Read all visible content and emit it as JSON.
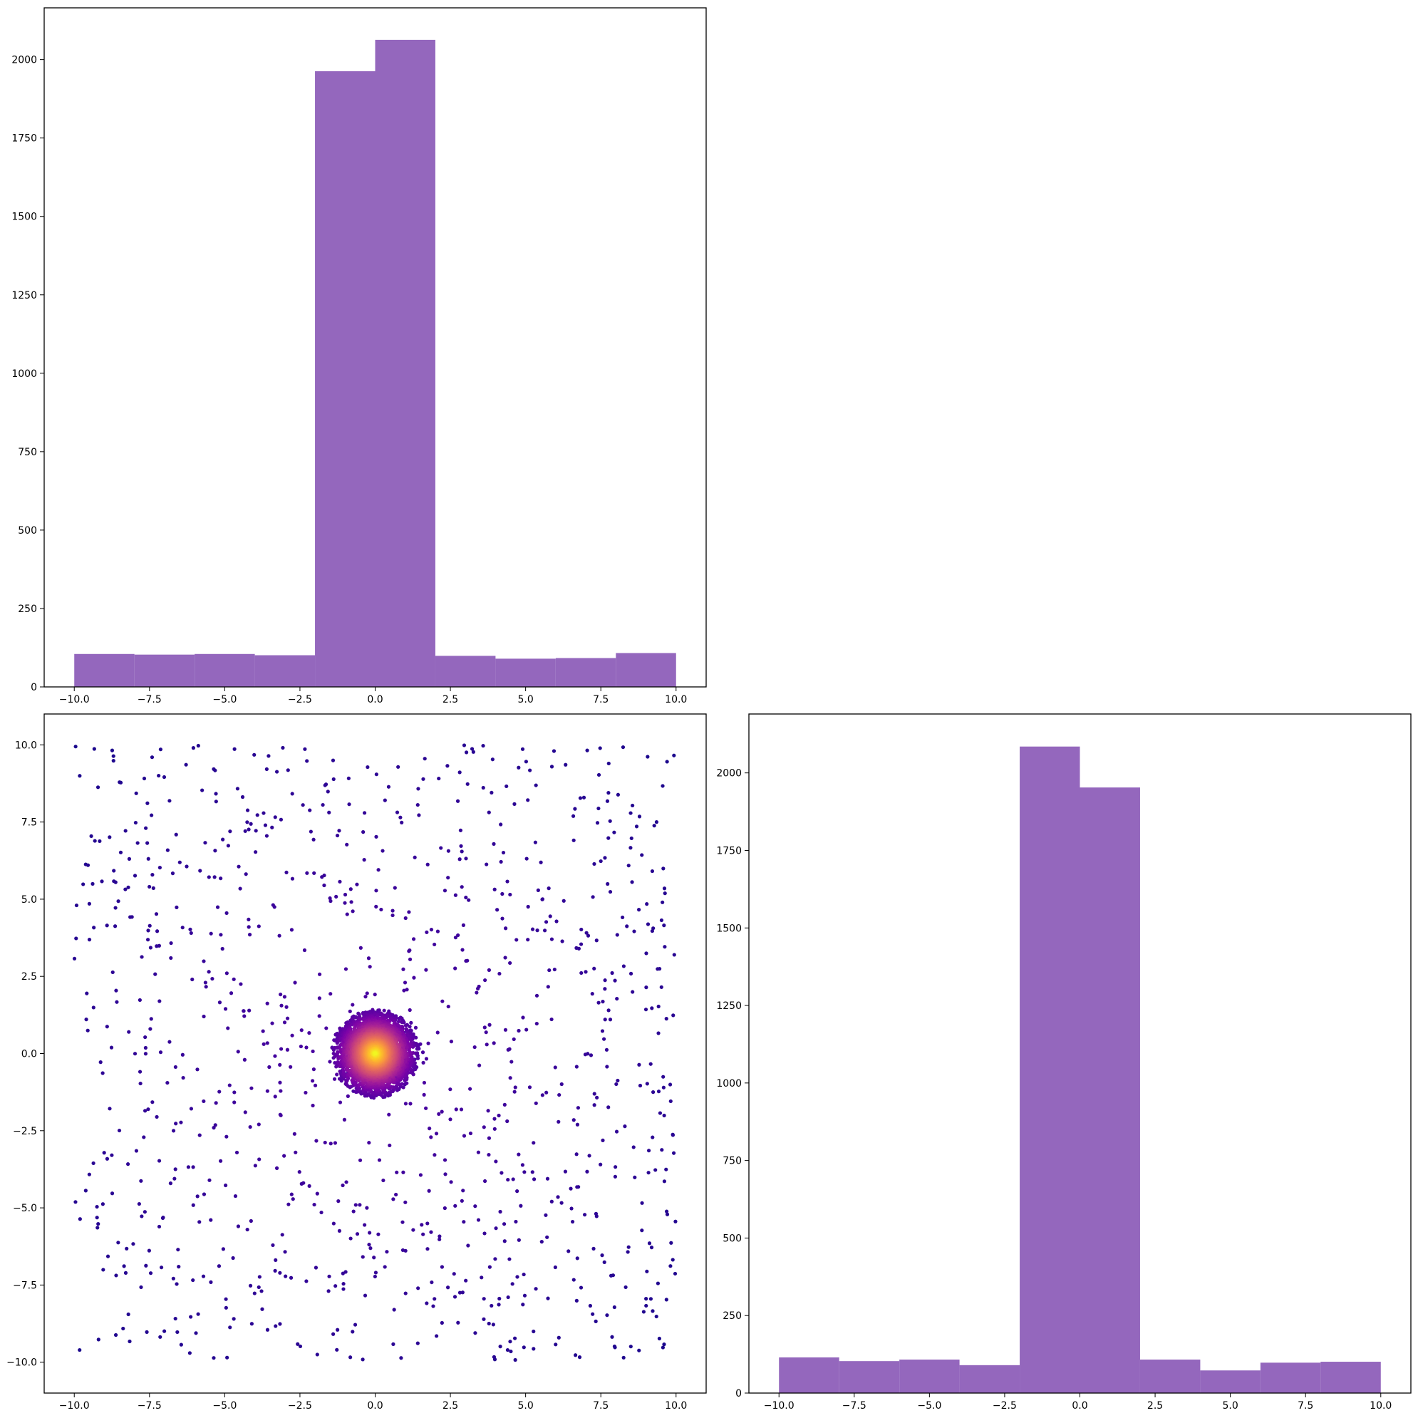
{
  "chart_data": [
    {
      "id": "hist-top",
      "type": "bar",
      "histogram": true,
      "bin_edges": [
        -10,
        -8,
        -6,
        -4,
        -2,
        0,
        2,
        4,
        6,
        8,
        10
      ],
      "values": [
        105,
        103,
        105,
        101,
        1963,
        2063,
        99,
        90,
        92,
        108
      ],
      "color": "#9467bd",
      "xlim": [
        -11,
        11
      ],
      "ylim": [
        0,
        2165
      ],
      "xticks": [
        -10.0,
        -7.5,
        -5.0,
        -2.5,
        0.0,
        2.5,
        5.0,
        7.5,
        10.0
      ],
      "xtick_labels": [
        "−10.0",
        "−7.5",
        "−5.0",
        "−2.5",
        "0.0",
        "2.5",
        "5.0",
        "7.5",
        "10.0"
      ],
      "yticks": [
        0,
        250,
        500,
        750,
        1000,
        1250,
        1500,
        1750,
        2000
      ],
      "ytick_labels": [
        "0",
        "250",
        "500",
        "750",
        "1000",
        "1250",
        "1500",
        "1750",
        "2000"
      ],
      "title": "",
      "xlabel": "",
      "ylabel": ""
    },
    {
      "id": "scatter",
      "type": "scatter",
      "description_of_data": "~1000 uniform points on [-10,10]x[-10,10] plus ~4000 points clustered within radius ~1.5 of origin, colored by density (plasma colormap)",
      "colormap": "plasma",
      "uniform_points": 1000,
      "cluster_points": 4000,
      "cluster_center": [
        0,
        0
      ],
      "cluster_radius": 1.45,
      "xlim": [
        -11,
        11
      ],
      "ylim": [
        -11,
        11
      ],
      "xticks": [
        -10.0,
        -7.5,
        -5.0,
        -2.5,
        0.0,
        2.5,
        5.0,
        7.5,
        10.0
      ],
      "xtick_labels": [
        "−10.0",
        "−7.5",
        "−5.0",
        "−2.5",
        "0.0",
        "2.5",
        "5.0",
        "7.5",
        "10.0"
      ],
      "yticks": [
        -10.0,
        -7.5,
        -5.0,
        -2.5,
        0.0,
        2.5,
        5.0,
        7.5,
        10.0
      ],
      "ytick_labels": [
        "−10.0",
        "−7.5",
        "−5.0",
        "−2.5",
        "0.0",
        "2.5",
        "5.0",
        "7.5",
        "10.0"
      ],
      "title": "",
      "xlabel": "",
      "ylabel": ""
    },
    {
      "id": "hist-right",
      "type": "bar",
      "histogram": true,
      "bin_edges": [
        -10,
        -8,
        -6,
        -4,
        -2,
        0,
        2,
        4,
        6,
        8,
        10
      ],
      "values": [
        115,
        103,
        108,
        90,
        2085,
        1953,
        108,
        73,
        98,
        101
      ],
      "color": "#9467bd",
      "xlim": [
        -11,
        11
      ],
      "ylim": [
        0,
        2190
      ],
      "xticks": [
        -10.0,
        -7.5,
        -5.0,
        -2.5,
        0.0,
        2.5,
        5.0,
        7.5,
        10.0
      ],
      "xtick_labels": [
        "−10.0",
        "−7.5",
        "−5.0",
        "−2.5",
        "0.0",
        "2.5",
        "5.0",
        "7.5",
        "10.0"
      ],
      "yticks": [
        0,
        250,
        500,
        750,
        1000,
        1250,
        1500,
        1750,
        2000
      ],
      "ytick_labels": [
        "0",
        "250",
        "500",
        "750",
        "1000",
        "1250",
        "1500",
        "1750",
        "2000"
      ],
      "title": "",
      "xlabel": "",
      "ylabel": ""
    }
  ]
}
